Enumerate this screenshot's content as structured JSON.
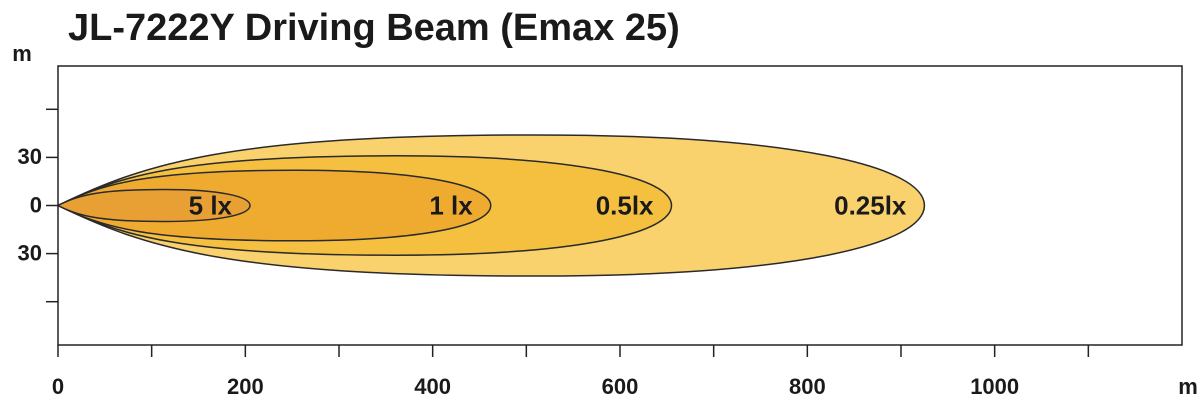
{
  "chart_data": {
    "type": "isolux",
    "title": "JL-7222Y   Driving Beam (Emax 25)",
    "x_label": "m",
    "y_label": "m",
    "xlim": [
      0,
      1200
    ],
    "xticks": [
      0,
      200,
      400,
      600,
      800,
      1000
    ],
    "xminorticks": [
      100,
      300,
      500,
      700,
      900,
      1100
    ],
    "ylim": [
      -87,
      87
    ],
    "yticks": [
      {
        "value": 30,
        "label": "30"
      },
      0,
      {
        "value": -30,
        "label": "30"
      }
    ],
    "yminorticks": [
      60,
      -60
    ],
    "series": [
      {
        "name": "5 lx",
        "color": "#e8a034",
        "reach": 205,
        "halfwidth": 10
      },
      {
        "name": "1 lx",
        "color": "#efab30",
        "reach": 462,
        "halfwidth": 22
      },
      {
        "name": "0.5lx",
        "color": "#f5c040",
        "reach": 655,
        "halfwidth": 31
      },
      {
        "name": "0.25lx",
        "color": "#f9d26e",
        "reach": 925,
        "halfwidth": 44
      }
    ]
  }
}
